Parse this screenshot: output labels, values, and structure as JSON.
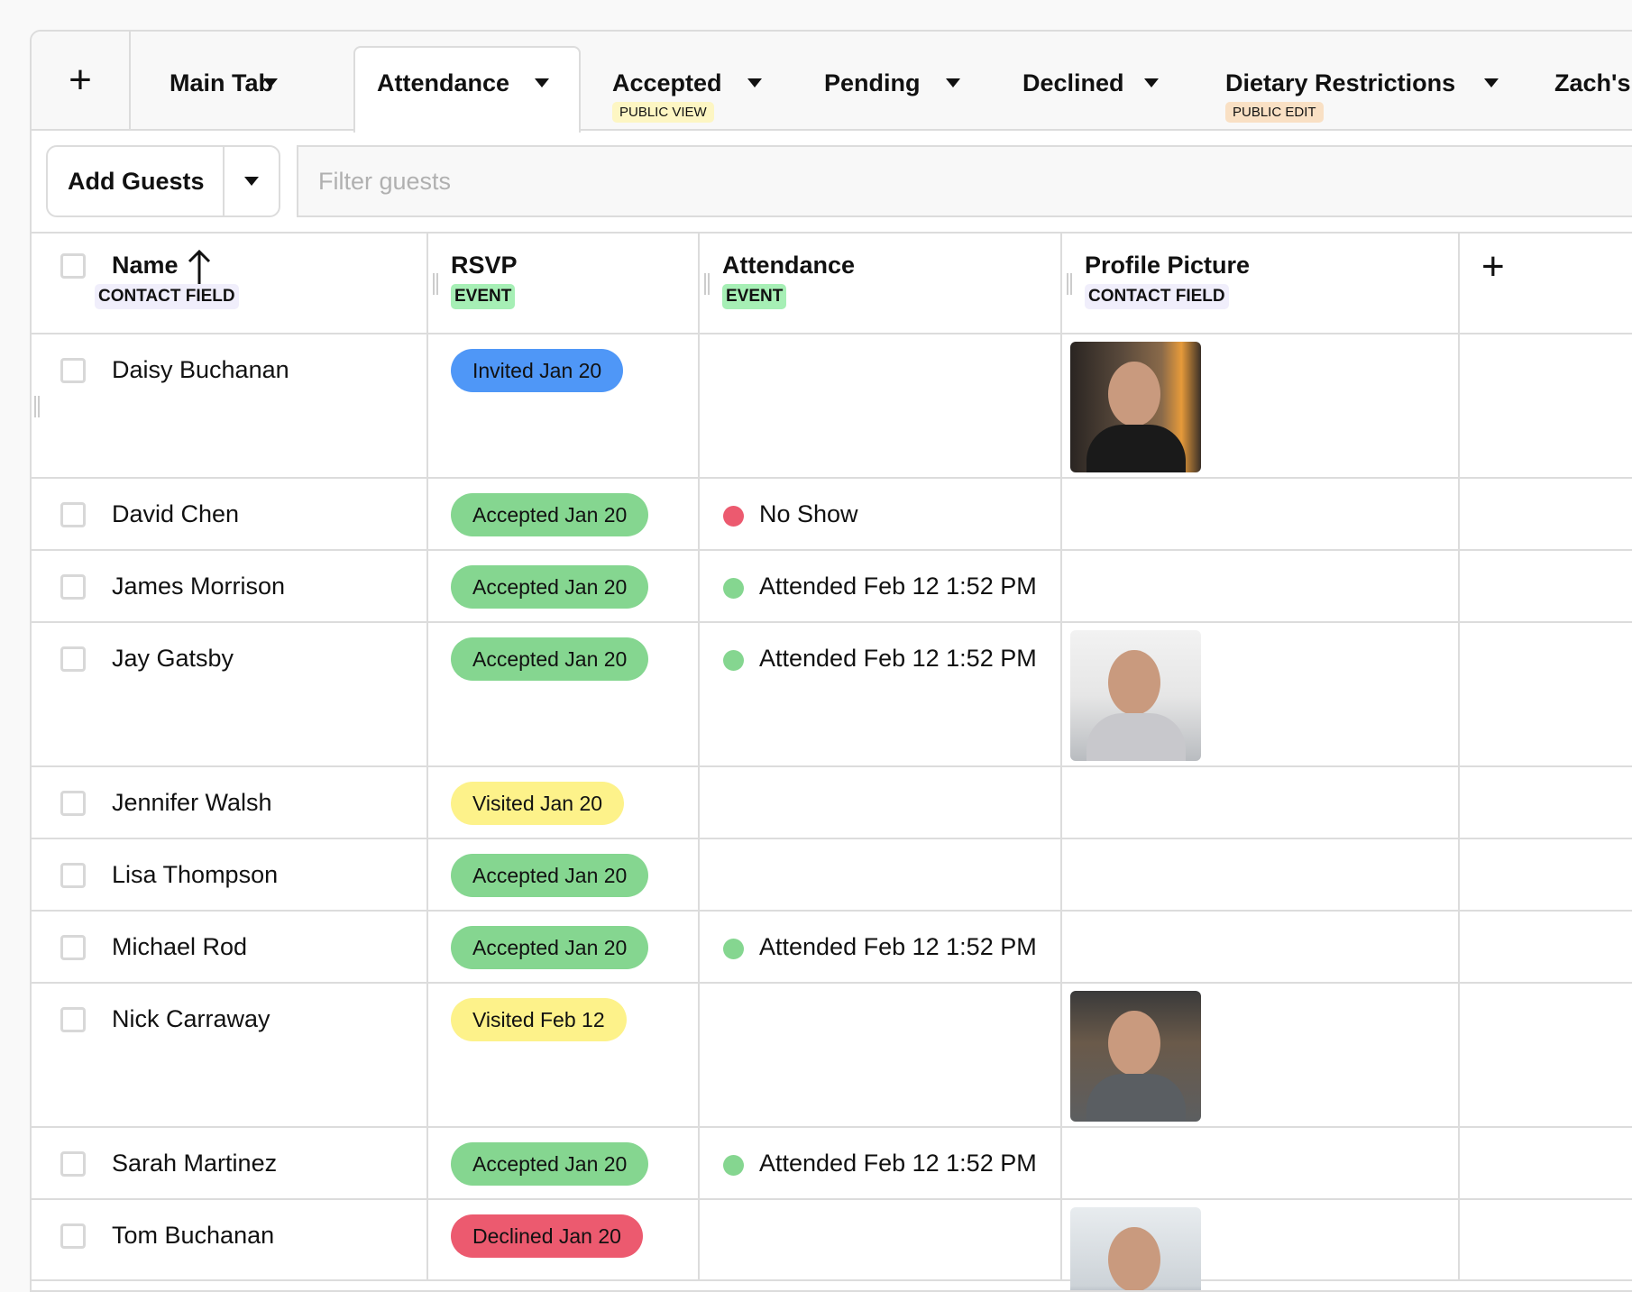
{
  "tabs": {
    "add_tab_icon": "plus-icon",
    "items": [
      {
        "label": "Main Tab",
        "badge": null
      },
      {
        "label": "Attendance",
        "badge": null,
        "active": true
      },
      {
        "label": "Accepted",
        "badge": "PUBLIC VIEW"
      },
      {
        "label": "Pending",
        "badge": null
      },
      {
        "label": "Declined",
        "badge": null
      },
      {
        "label": "Dietary Restrictions",
        "badge": "PUBLIC EDIT"
      },
      {
        "label": "Zach's",
        "badge": null
      }
    ]
  },
  "toolbar": {
    "add_guests": "Add Guests",
    "filter_placeholder": "Filter guests"
  },
  "columns": [
    {
      "label": "Name",
      "tag": "CONTACT FIELD",
      "sort": "ascending"
    },
    {
      "label": "RSVP",
      "tag": "EVENT"
    },
    {
      "label": "Attendance",
      "tag": "EVENT"
    },
    {
      "label": "Profile Picture",
      "tag": "CONTACT FIELD"
    }
  ],
  "colors": {
    "invited": "#4f97f7",
    "accepted": "#85d690",
    "visited": "#fdf28a",
    "declined": "#ec5a6f",
    "no_show": "#ec5a6f",
    "attended": "#85d690",
    "event_tag": "#a6efb5",
    "contact_tag": "#f0eefb",
    "public_view": "#fdf6c3",
    "public_edit": "#f9e0c4"
  },
  "rows": [
    {
      "name": "Daisy Buchanan",
      "rsvp": "Invited Jan 20",
      "rsvp_status": "invited",
      "attendance": "",
      "photo": "woman with glasses"
    },
    {
      "name": "David Chen",
      "rsvp": "Accepted Jan 20",
      "rsvp_status": "accepted",
      "attendance": "No Show",
      "attendance_status": "no_show"
    },
    {
      "name": "James Morrison",
      "rsvp": "Accepted Jan 20",
      "rsvp_status": "accepted",
      "attendance": "Attended Feb 12 1:52 PM",
      "attendance_status": "attended"
    },
    {
      "name": "Jay Gatsby",
      "rsvp": "Accepted Jan 20",
      "rsvp_status": "accepted",
      "attendance": "Attended Feb 12 1:52 PM",
      "attendance_status": "attended",
      "photo": "man with glasses"
    },
    {
      "name": "Jennifer Walsh",
      "rsvp": "Visited Jan 20",
      "rsvp_status": "visited",
      "attendance": ""
    },
    {
      "name": "Lisa Thompson",
      "rsvp": "Accepted Jan 20",
      "rsvp_status": "accepted",
      "attendance": ""
    },
    {
      "name": "Michael Rod",
      "rsvp": "Accepted Jan 20",
      "rsvp_status": "accepted",
      "attendance": "Attended Feb 12 1:52 PM",
      "attendance_status": "attended"
    },
    {
      "name": "Nick Carraway",
      "rsvp": "Visited Feb 12",
      "rsvp_status": "visited",
      "attendance": "",
      "photo": "man in office"
    },
    {
      "name": "Sarah Martinez",
      "rsvp": "Accepted Jan 20",
      "rsvp_status": "accepted",
      "attendance": "Attended Feb 12 1:52 PM",
      "attendance_status": "attended"
    },
    {
      "name": "Tom Buchanan",
      "rsvp": "Declined Jan 20",
      "rsvp_status": "declined",
      "attendance": "",
      "photo": "man in suit"
    }
  ]
}
